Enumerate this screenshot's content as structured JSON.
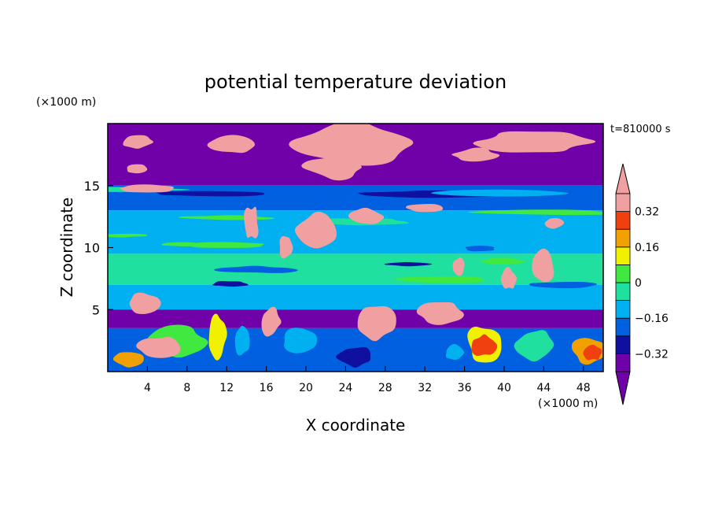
{
  "chart_data": {
    "type": "heatmap",
    "title": "potential temperature deviation",
    "xlabel": "X coordinate",
    "ylabel": "Z coordinate",
    "x_unit": "(×1000 m)",
    "y_unit": "(×1000 m)",
    "time_label": "t=810000 s",
    "xlim": [
      0,
      50
    ],
    "ylim": [
      0,
      20
    ],
    "x_ticks": [
      4,
      8,
      12,
      16,
      20,
      24,
      28,
      32,
      36,
      40,
      44,
      48
    ],
    "y_ticks": [
      5,
      10,
      15
    ],
    "colorbar": {
      "levels": [
        -0.4,
        -0.32,
        -0.24,
        -0.16,
        -0.08,
        0,
        0.08,
        0.16,
        0.24,
        0.32,
        0.4
      ],
      "labels": [
        "0.32",
        "0.16",
        "0",
        "−0.16",
        "−0.32"
      ],
      "label_values": [
        0.32,
        0.16,
        0,
        -0.16,
        -0.32
      ],
      "colors": [
        "#7000a8",
        "#1010a0",
        "#0060e0",
        "#00b0f0",
        "#20e0a0",
        "#40e840",
        "#f0f000",
        "#f0a000",
        "#f04010",
        "#f0a0a0"
      ],
      "extend": "both"
    },
    "bands": [
      {
        "z_range": [
          15,
          20
        ],
        "dominant_value": -0.45
      },
      {
        "z_range": [
          13,
          15
        ],
        "dominant_value": -0.2
      },
      {
        "z_range": [
          9.5,
          13
        ],
        "dominant_value": -0.12
      },
      {
        "z_range": [
          7,
          9.5
        ],
        "dominant_value": -0.02
      },
      {
        "z_range": [
          5,
          7
        ],
        "dominant_value": -0.12
      },
      {
        "z_range": [
          3.5,
          5
        ],
        "dominant_value": -0.45
      },
      {
        "z_range": [
          0,
          3.5
        ],
        "dominant_value": -0.2
      }
    ]
  }
}
